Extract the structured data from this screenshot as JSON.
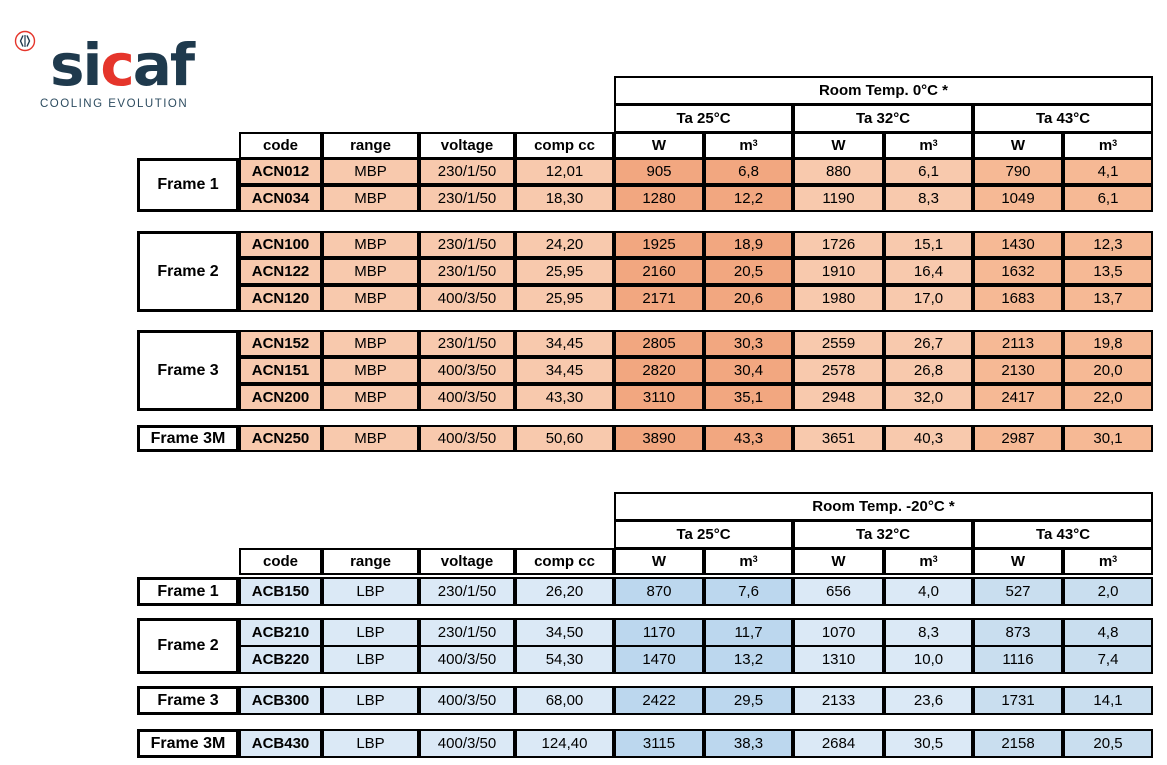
{
  "logo": {
    "brand_prefix": "si",
    "brand_accent": "c",
    "brand_suffix": "af",
    "tagline": "COOLING EVOLUTION",
    "accent_color": "#e5352b",
    "text_color": "#1f3a4d"
  },
  "columns": {
    "code": "code",
    "range": "range",
    "voltage": "voltage",
    "comp": "comp cc",
    "w": "W",
    "m": "m",
    "m_sup": "3"
  },
  "tables": [
    {
      "room_temp": "Room Temp. 0°C *",
      "ta": [
        "Ta 25°C",
        "Ta 32°C",
        "Ta 43°C"
      ],
      "colors": {
        "base": "#f8c9ad",
        "ta25": "#f2a780",
        "ta43": "#f6b995"
      },
      "groups": [
        {
          "frame": "Frame 1",
          "rows": [
            {
              "code": "ACN012",
              "range": "MBP",
              "voltage": "230/1/50",
              "comp": "12,01",
              "w25": "905",
              "m25": "6,8",
              "w32": "880",
              "m32": "6,1",
              "w43": "790",
              "m43": "4,1"
            },
            {
              "code": "ACN034",
              "range": "MBP",
              "voltage": "230/1/50",
              "comp": "18,30",
              "w25": "1280",
              "m25": "12,2",
              "w32": "1190",
              "m32": "8,3",
              "w43": "1049",
              "m43": "6,1"
            }
          ]
        },
        {
          "frame": "Frame 2",
          "rows": [
            {
              "code": "ACN100",
              "range": "MBP",
              "voltage": "230/1/50",
              "comp": "24,20",
              "w25": "1925",
              "m25": "18,9",
              "w32": "1726",
              "m32": "15,1",
              "w43": "1430",
              "m43": "12,3"
            },
            {
              "code": "ACN122",
              "range": "MBP",
              "voltage": "230/1/50",
              "comp": "25,95",
              "w25": "2160",
              "m25": "20,5",
              "w32": "1910",
              "m32": "16,4",
              "w43": "1632",
              "m43": "13,5"
            },
            {
              "code": "ACN120",
              "range": "MBP",
              "voltage": "400/3/50",
              "comp": "25,95",
              "w25": "2171",
              "m25": "20,6",
              "w32": "1980",
              "m32": "17,0",
              "w43": "1683",
              "m43": "13,7"
            }
          ]
        },
        {
          "frame": "Frame 3",
          "rows": [
            {
              "code": "ACN152",
              "range": "MBP",
              "voltage": "230/1/50",
              "comp": "34,45",
              "w25": "2805",
              "m25": "30,3",
              "w32": "2559",
              "m32": "26,7",
              "w43": "2113",
              "m43": "19,8"
            },
            {
              "code": "ACN151",
              "range": "MBP",
              "voltage": "400/3/50",
              "comp": "34,45",
              "w25": "2820",
              "m25": "30,4",
              "w32": "2578",
              "m32": "26,8",
              "w43": "2130",
              "m43": "20,0"
            },
            {
              "code": "ACN200",
              "range": "MBP",
              "voltage": "400/3/50",
              "comp": "43,30",
              "w25": "3110",
              "m25": "35,1",
              "w32": "2948",
              "m32": "32,0",
              "w43": "2417",
              "m43": "22,0"
            }
          ]
        },
        {
          "frame": "Frame 3M",
          "rows": [
            {
              "code": "ACN250",
              "range": "MBP",
              "voltage": "400/3/50",
              "comp": "50,60",
              "w25": "3890",
              "m25": "43,3",
              "w32": "3651",
              "m32": "40,3",
              "w43": "2987",
              "m43": "30,1"
            }
          ]
        }
      ]
    },
    {
      "room_temp": "Room Temp. -20°C *",
      "ta": [
        "Ta 25°C",
        "Ta 32°C",
        "Ta 43°C"
      ],
      "colors": {
        "base": "#dbe9f6",
        "ta25": "#bcd7ee",
        "ta43": "#c9deef"
      },
      "groups": [
        {
          "frame": "Frame 1",
          "rows": [
            {
              "code": "ACB150",
              "range": "LBP",
              "voltage": "230/1/50",
              "comp": "26,20",
              "w25": "870",
              "m25": "7,6",
              "w32": "656",
              "m32": "4,0",
              "w43": "527",
              "m43": "2,0"
            }
          ]
        },
        {
          "frame": "Frame 2",
          "rows": [
            {
              "code": "ACB210",
              "range": "LBP",
              "voltage": "230/1/50",
              "comp": "34,50",
              "w25": "1170",
              "m25": "11,7",
              "w32": "1070",
              "m32": "8,3",
              "w43": "873",
              "m43": "4,8"
            },
            {
              "code": "ACB220",
              "range": "LBP",
              "voltage": "400/3/50",
              "comp": "54,30",
              "w25": "1470",
              "m25": "13,2",
              "w32": "1310",
              "m32": "10,0",
              "w43": "1116",
              "m43": "7,4"
            }
          ]
        },
        {
          "frame": "Frame 3",
          "rows": [
            {
              "code": "ACB300",
              "range": "LBP",
              "voltage": "400/3/50",
              "comp": "68,00",
              "w25": "2422",
              "m25": "29,5",
              "w32": "2133",
              "m32": "23,6",
              "w43": "1731",
              "m43": "14,1"
            }
          ]
        },
        {
          "frame": "Frame 3M",
          "rows": [
            {
              "code": "ACB430",
              "range": "LBP",
              "voltage": "400/3/50",
              "comp": "124,40",
              "w25": "3115",
              "m25": "38,3",
              "w32": "2684",
              "m32": "30,5",
              "w43": "2158",
              "m43": "20,5"
            }
          ]
        }
      ]
    }
  ]
}
